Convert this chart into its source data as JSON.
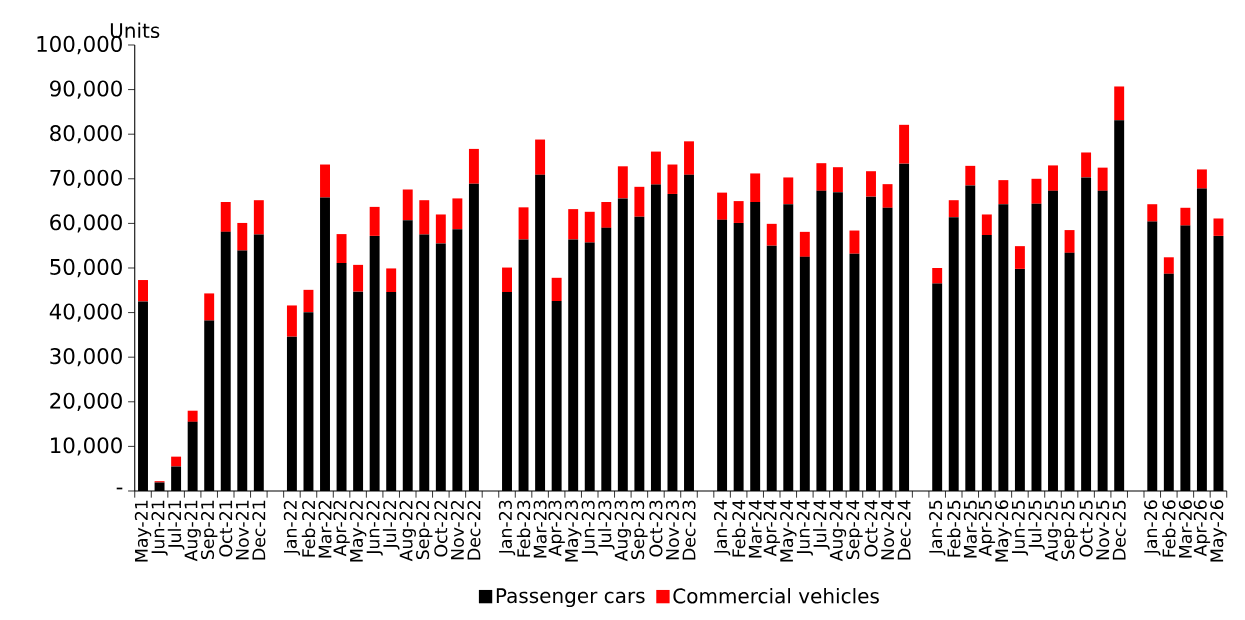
{
  "chart_data": {
    "type": "bar",
    "stacked": true,
    "ylabel": "Units",
    "categories": [
      "May-21",
      "Jun-21",
      "Jul-21",
      "Aug-21",
      "Sep-21",
      "Oct-21",
      "Nov-21",
      "Dec-21",
      null,
      "Jan-22",
      "Feb-22",
      "Mar-22",
      "Apr-22",
      "May-22",
      "Jun-22",
      "Jul-22",
      "Aug-22",
      "Sep-22",
      "Oct-22",
      "Nov-22",
      "Dec-22",
      null,
      "Jan-23",
      "Feb-23",
      "Mar-23",
      "Apr-23",
      "May-23",
      "Jun-23",
      "Jul-23",
      "Aug-23",
      "Sep-23",
      "Oct-23",
      "Nov-23",
      "Dec-23",
      null,
      "Jan-24",
      "Feb-24",
      "Mar-24",
      "Apr-24",
      "May-24",
      "Jun-24",
      "Jul-24",
      "Aug-24",
      "Sep-24",
      "Oct-24",
      "Nov-24",
      "Dec-24",
      null,
      "Jan-25",
      "Feb-25",
      "Mar-25",
      "Apr-25",
      "May-26",
      "Jun-25",
      "Jul-25",
      "Aug-25",
      "Sep-25",
      "Oct-25",
      "Nov-25",
      "Dec-25",
      null,
      "Jan-26",
      "Feb-26",
      "Mar-26",
      "Apr-26",
      "May-26"
    ],
    "series": [
      {
        "name": "Passenger cars",
        "color": "#000000",
        "values": [
          42500,
          1900,
          5500,
          15500,
          38200,
          58100,
          53900,
          57500,
          null,
          34600,
          40100,
          65800,
          51100,
          44700,
          57200,
          44600,
          60700,
          57500,
          55500,
          58700,
          68900,
          null,
          44600,
          56400,
          70900,
          42600,
          56400,
          55700,
          59000,
          65600,
          61500,
          68700,
          66600,
          70900,
          null,
          60800,
          60100,
          64800,
          55000,
          64300,
          52500,
          67300,
          67000,
          53200,
          66000,
          63500,
          73400,
          null,
          46500,
          61400,
          68500,
          57400,
          64300,
          49800,
          64400,
          67300,
          53400,
          70300,
          67300,
          83100,
          null,
          60400,
          48700,
          59500,
          67800,
          57200
        ]
      },
      {
        "name": "Commercial vehicles",
        "color": "#ff0000",
        "values": [
          4800,
          300,
          2200,
          2500,
          6100,
          6700,
          6200,
          7700,
          null,
          7000,
          5000,
          7400,
          6500,
          6000,
          6500,
          5300,
          6900,
          7700,
          6500,
          6900,
          7800,
          null,
          5500,
          7200,
          7900,
          5200,
          6800,
          6900,
          5800,
          7200,
          6700,
          7400,
          6600,
          7500,
          null,
          6100,
          4900,
          6400,
          4900,
          6000,
          5600,
          6200,
          5600,
          5200,
          5700,
          5300,
          8700,
          null,
          3500,
          3800,
          4400,
          4600,
          5400,
          5100,
          5600,
          5700,
          5100,
          5600,
          5200,
          7600,
          null,
          3900,
          3700,
          4000,
          4300,
          3900
        ]
      }
    ],
    "ylim": [
      0,
      100000
    ],
    "yticks": [
      {
        "value": 0,
        "label": "-"
      },
      {
        "value": 10000,
        "label": "10,000"
      },
      {
        "value": 20000,
        "label": "20,000"
      },
      {
        "value": 30000,
        "label": "30,000"
      },
      {
        "value": 40000,
        "label": "40,000"
      },
      {
        "value": 50000,
        "label": "50,000"
      },
      {
        "value": 60000,
        "label": "60,000"
      },
      {
        "value": 70000,
        "label": "70,000"
      },
      {
        "value": 80000,
        "label": "80,000"
      },
      {
        "value": 90000,
        "label": "90,000"
      },
      {
        "value": 100000,
        "label": "100,000"
      }
    ],
    "legend": "bottom"
  }
}
